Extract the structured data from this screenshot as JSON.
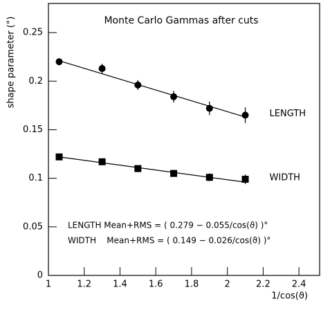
{
  "chart_data": {
    "type": "scatter",
    "title": "Monte Carlo Gammas after cuts",
    "x_label": "1/cos(ϑ)",
    "y_label": "shape parameter (°)",
    "xlim": [
      1,
      2.5
    ],
    "ylim": [
      0,
      0.28
    ],
    "xticks": [
      1,
      1.2,
      1.4,
      1.6,
      1.8,
      2,
      2.2,
      2.4
    ],
    "yticks": [
      0,
      0.05,
      0.1,
      0.15,
      0.2,
      0.25
    ],
    "series": [
      {
        "name": "LENGTH",
        "marker": "circle",
        "color": "#000000",
        "x": [
          1.06,
          1.3,
          1.5,
          1.7,
          1.9,
          2.1
        ],
        "values": [
          0.22,
          0.213,
          0.196,
          0.184,
          0.172,
          0.165
        ],
        "errors": [
          0.003,
          0.005,
          0.005,
          0.006,
          0.007,
          0.008
        ]
      },
      {
        "name": "WIDTH",
        "marker": "square",
        "color": "#000000",
        "x": [
          1.06,
          1.3,
          1.5,
          1.7,
          1.9,
          2.1
        ],
        "values": [
          0.122,
          0.117,
          0.11,
          0.105,
          0.101,
          0.099
        ],
        "errors": [
          0.002,
          0.002,
          0.003,
          0.003,
          0.004,
          0.005
        ]
      }
    ],
    "fits": [
      {
        "x": [
          1.06,
          2.1
        ],
        "values": [
          0.221,
          0.163
        ]
      },
      {
        "x": [
          1.06,
          2.1
        ],
        "values": [
          0.122,
          0.096
        ]
      }
    ],
    "annotations": [
      "LENGTH Mean+RMS = ( 0.279 − 0.055/cos(ϑ) )°",
      "WIDTH    Mean+RMS = ( 0.149 − 0.026/cos(ϑ) )°"
    ]
  }
}
